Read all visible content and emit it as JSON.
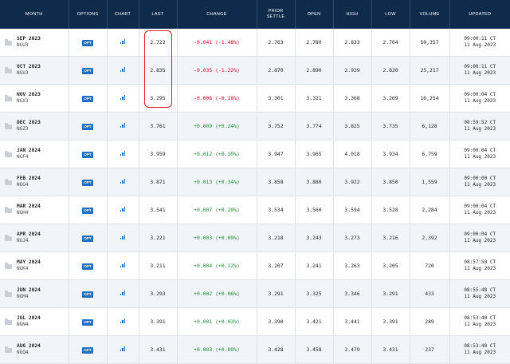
{
  "headers": {
    "month": "MONTH",
    "options": "OPTIONS",
    "chart": "CHART",
    "last": "LAST",
    "change": "CHANGE",
    "prior_line1": "PRIOR",
    "prior_line2": "SETTLE",
    "open": "OPEN",
    "high": "HIGH",
    "low": "LOW",
    "volume": "VOLUME",
    "updated": "UPDATED"
  },
  "opt_label": "OPT",
  "rows": [
    {
      "month": "SEP 2023",
      "code": "NGU3",
      "last": "2.722",
      "change": "-0.041 (-1.48%)",
      "dir": "neg",
      "prior": "2.763",
      "open": "2.780",
      "high": "2.833",
      "low": "2.704",
      "volume": "50,357",
      "time": "09:00:11 CT",
      "date": "11 Aug 2023"
    },
    {
      "month": "OCT 2023",
      "code": "NGV3",
      "last": "2.835",
      "change": "-0.035 (-1.22%)",
      "dir": "neg",
      "prior": "2.870",
      "open": "2.890",
      "high": "2.939",
      "low": "2.820",
      "volume": "25,217",
      "time": "09:00:11 CT",
      "date": "11 Aug 2023"
    },
    {
      "month": "NOV 2023",
      "code": "NGX3",
      "last": "3.295",
      "change": "-0.006 (-0.18%)",
      "dir": "neg",
      "prior": "3.301",
      "open": "3.321",
      "high": "3.368",
      "low": "3.269",
      "volume": "16,254",
      "time": "09:00:04 CT",
      "date": "11 Aug 2023"
    },
    {
      "month": "DEC 2023",
      "code": "NGZ3",
      "last": "3.761",
      "change": "+0.009 (+0.24%)",
      "dir": "pos",
      "prior": "3.752",
      "open": "3.774",
      "high": "3.825",
      "low": "3.735",
      "volume": "6,128",
      "time": "08:59:52 CT",
      "date": "11 Aug 2023"
    },
    {
      "month": "JAN 2024",
      "code": "NGF4",
      "last": "3.959",
      "change": "+0.012 (+0.30%)",
      "dir": "pos",
      "prior": "3.947",
      "open": "3.965",
      "high": "4.018",
      "low": "3.934",
      "volume": "6,759",
      "time": "09:00:04 CT",
      "date": "11 Aug 2023"
    },
    {
      "month": "FEB 2024",
      "code": "NGG4",
      "last": "3.871",
      "change": "+0.013 (+0.34%)",
      "dir": "pos",
      "prior": "3.858",
      "open": "3.880",
      "high": "3.922",
      "low": "3.850",
      "volume": "1,559",
      "time": "09:00:00 CT",
      "date": "11 Aug 2023"
    },
    {
      "month": "MAR 2024",
      "code": "NGH4",
      "last": "3.541",
      "change": "+0.007 (+0.20%)",
      "dir": "pos",
      "prior": "3.534",
      "open": "3.560",
      "high": "3.594",
      "low": "3.528",
      "volume": "2,284",
      "time": "09:00:04 CT",
      "date": "11 Aug 2023"
    },
    {
      "month": "APR 2024",
      "code": "NGJ4",
      "last": "3.221",
      "change": "+0.003 (+0.09%)",
      "dir": "pos",
      "prior": "3.218",
      "open": "3.243",
      "high": "3.273",
      "low": "3.216",
      "volume": "2,392",
      "time": "09:00:04 CT",
      "date": "11 Aug 2023"
    },
    {
      "month": "MAY 2024",
      "code": "NGK4",
      "last": "3.211",
      "change": "+0.004 (+0.12%)",
      "dir": "pos",
      "prior": "3.207",
      "open": "3.241",
      "high": "3.263",
      "low": "3.205",
      "volume": "720",
      "time": "08:57:50 CT",
      "date": "11 Aug 2023"
    },
    {
      "month": "JUN 2024",
      "code": "NGM4",
      "last": "3.293",
      "change": "+0.002 (+0.06%)",
      "dir": "pos",
      "prior": "3.291",
      "open": "3.325",
      "high": "3.346",
      "low": "3.291",
      "volume": "433",
      "time": "08:55:48 CT",
      "date": "11 Aug 2023"
    },
    {
      "month": "JUL 2024",
      "code": "NGN4",
      "last": "3.391",
      "change": "+0.001 (+0.03%)",
      "dir": "pos",
      "prior": "3.390",
      "open": "3.421",
      "high": "3.441",
      "low": "3.391",
      "volume": "289",
      "time": "08:53:40 CT",
      "date": "11 Aug 2023"
    },
    {
      "month": "AUG 2024",
      "code": "NGQ4",
      "last": "3.431",
      "change": "+0.003 (+0.09%)",
      "dir": "pos",
      "prior": "3.428",
      "open": "3.458",
      "high": "3.479",
      "low": "3.431",
      "volume": "237",
      "time": "08:53:40 CT",
      "date": "11 Aug 2023"
    }
  ]
}
